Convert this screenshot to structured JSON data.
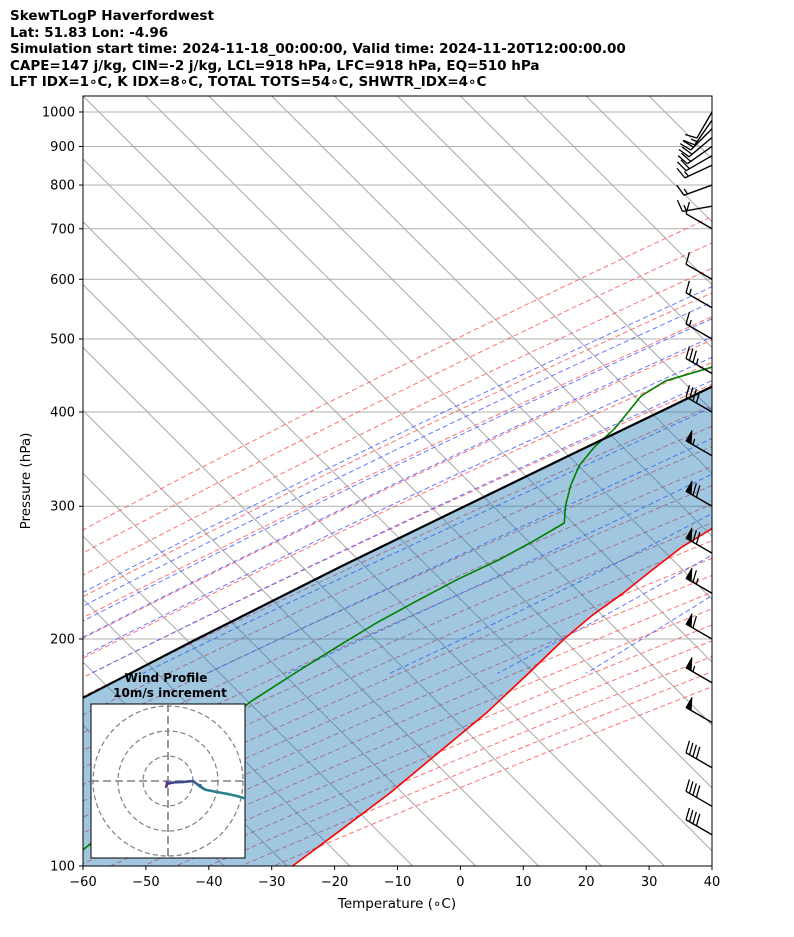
{
  "header": {
    "line1": "SkewTLogP Haverfordwest",
    "line2": "Lat: 51.83   Lon: -4.96",
    "line3": "Simulation start time: 2024-11-18_00:00:00, Valid time: 2024-11-20T12:00:00.00",
    "line4": "CAPE=147 j/kg, CIN=-2 j/kg, LCL=918 hPa, LFC=918 hPa, EQ=510 hPa",
    "line5": "LFT IDX=1∘C, K IDX=8∘C, TOTAL TOTS=54∘C, SHWTR_IDX=4∘C"
  },
  "chart_data": {
    "type": "line",
    "xlabel": "Temperature (∘C)",
    "ylabel": "Pressure (hPa)",
    "xlim": [
      -60,
      40
    ],
    "ylim": [
      1050,
      100
    ],
    "y_scale": "log",
    "x_ticks": [
      -60,
      -50,
      -40,
      -30,
      -20,
      -10,
      0,
      10,
      20,
      30,
      40
    ],
    "x_tick_labels": [
      "−60",
      "−50",
      "−40",
      "−30",
      "−20",
      "−10",
      "0",
      "10",
      "20",
      "30",
      "40"
    ],
    "y_ticks": [
      1000,
      900,
      800,
      700,
      600,
      500,
      400,
      300,
      200,
      100
    ],
    "y_tick_labels": [
      "1000",
      "900",
      "800",
      "700",
      "600",
      "500",
      "400",
      "300",
      "200",
      "100"
    ],
    "grid": true,
    "series": [
      {
        "color": "#ff0000",
        "points": [
          [
            1000,
            7.0
          ],
          [
            975,
            5.0
          ],
          [
            950,
            3.2
          ],
          [
            925,
            1.8
          ],
          [
            900,
            0.5
          ],
          [
            875,
            -0.5
          ],
          [
            850,
            -1.3
          ],
          [
            800,
            -3.5
          ],
          [
            750,
            -6.0
          ],
          [
            700,
            -8.5
          ],
          [
            650,
            -11.0
          ],
          [
            600,
            -13.5
          ],
          [
            550,
            -16.2
          ],
          [
            520,
            -17.3
          ],
          [
            500,
            -16.5
          ],
          [
            470,
            -14.8
          ],
          [
            440,
            -13.2
          ],
          [
            420,
            -13.1
          ],
          [
            400,
            -13.4
          ],
          [
            370,
            -13.7
          ],
          [
            340,
            -13.1
          ],
          [
            310,
            -12.1
          ],
          [
            300,
            -12.0
          ],
          [
            285,
            -13.1
          ],
          [
            265,
            -15.5
          ],
          [
            245,
            -16.7
          ],
          [
            230,
            -17.5
          ],
          [
            215,
            -18.9
          ],
          [
            200,
            -19.6
          ],
          [
            180,
            -19.8
          ],
          [
            160,
            -20.2
          ],
          [
            140,
            -21.6
          ],
          [
            125,
            -22.8
          ],
          [
            110,
            -25.0
          ],
          [
            100,
            -26.7
          ]
        ]
      },
      {
        "color": "#008000",
        "points": [
          [
            1000,
            1.6
          ],
          [
            975,
            1.2
          ],
          [
            950,
            0.5
          ],
          [
            925,
            0.6
          ],
          [
            900,
            0.2
          ],
          [
            875,
            -1.3
          ],
          [
            850,
            -6.5
          ],
          [
            825,
            -15.0
          ],
          [
            800,
            -24.0
          ],
          [
            790,
            -24.5
          ],
          [
            760,
            -25.0
          ],
          [
            720,
            -24.0
          ],
          [
            690,
            -23.0
          ],
          [
            650,
            -24.5
          ],
          [
            600,
            -28.0
          ],
          [
            550,
            -29.5
          ],
          [
            510,
            -30.5
          ],
          [
            490,
            -32.5
          ],
          [
            460,
            -39.0
          ],
          [
            440,
            -44.5
          ],
          [
            420,
            -46.0
          ],
          [
            400,
            -45.5
          ],
          [
            380,
            -45.0
          ],
          [
            360,
            -45.3
          ],
          [
            340,
            -44.8
          ],
          [
            320,
            -43.0
          ],
          [
            300,
            -40.5
          ],
          [
            285,
            -38.0
          ],
          [
            270,
            -40.0
          ],
          [
            255,
            -42.5
          ],
          [
            240,
            -46.0
          ],
          [
            225,
            -49.0
          ],
          [
            210,
            -52.0
          ],
          [
            195,
            -54.5
          ],
          [
            180,
            -57.0
          ],
          [
            165,
            -59.5
          ],
          [
            150,
            -60.6
          ],
          [
            135,
            -60.6
          ],
          [
            120,
            -61.3
          ],
          [
            100,
            -63.0
          ]
        ]
      },
      {
        "color": "#000000",
        "points": [
          [
            1000,
            6.8
          ],
          [
            975,
            4.8
          ],
          [
            950,
            2.8
          ],
          [
            925,
            1.4
          ],
          [
            918,
            1.0
          ],
          [
            900,
            0.0
          ],
          [
            850,
            -2.4
          ],
          [
            800,
            -5.0
          ],
          [
            750,
            -8.0
          ],
          [
            700,
            -11.1
          ],
          [
            650,
            -14.5
          ],
          [
            600,
            -18.5
          ],
          [
            550,
            -22.9
          ],
          [
            510,
            -27.0
          ],
          [
            500,
            -28.0
          ],
          [
            450,
            -34.0
          ],
          [
            400,
            -40.5
          ],
          [
            350,
            -48.0
          ],
          [
            300,
            -56.5
          ],
          [
            250,
            -66.5
          ],
          [
            200,
            -78.0
          ],
          [
            150,
            -92.0
          ],
          [
            100,
            -112.0
          ]
        ]
      }
    ],
    "wind_barbs": [
      {
        "pressure": 1000,
        "speed": 10,
        "direction": 210
      },
      {
        "pressure": 975,
        "speed": 15,
        "direction": 215
      },
      {
        "pressure": 950,
        "speed": 20,
        "direction": 225
      },
      {
        "pressure": 925,
        "speed": 20,
        "direction": 230
      },
      {
        "pressure": 900,
        "speed": 20,
        "direction": 235
      },
      {
        "pressure": 875,
        "speed": 20,
        "direction": 240
      },
      {
        "pressure": 850,
        "speed": 15,
        "direction": 245
      },
      {
        "pressure": 800,
        "speed": 15,
        "direction": 250
      },
      {
        "pressure": 750,
        "speed": 15,
        "direction": 260
      },
      {
        "pressure": 700,
        "speed": 10,
        "direction": 300
      },
      {
        "pressure": 600,
        "speed": 10,
        "direction": 300
      },
      {
        "pressure": 550,
        "speed": 15,
        "direction": 300
      },
      {
        "pressure": 500,
        "speed": 15,
        "direction": 300
      },
      {
        "pressure": 450,
        "speed": 35,
        "direction": 300
      },
      {
        "pressure": 400,
        "speed": 40,
        "direction": 300
      },
      {
        "pressure": 350,
        "speed": 55,
        "direction": 300
      },
      {
        "pressure": 300,
        "speed": 70,
        "direction": 300
      },
      {
        "pressure": 260,
        "speed": 70,
        "direction": 300
      },
      {
        "pressure": 230,
        "speed": 65,
        "direction": 300
      },
      {
        "pressure": 200,
        "speed": 60,
        "direction": 300
      },
      {
        "pressure": 175,
        "speed": 55,
        "direction": 300
      },
      {
        "pressure": 155,
        "speed": 50,
        "direction": 300
      },
      {
        "pressure": 135,
        "speed": 40,
        "direction": 300
      },
      {
        "pressure": 120,
        "speed": 40,
        "direction": 300
      },
      {
        "pressure": 110,
        "speed": 40,
        "direction": 300
      }
    ],
    "hodograph": {
      "title": "Wind Profile",
      "subtitle": "10m/s increment",
      "rings_ms": [
        10,
        20,
        30
      ],
      "u": [
        -0.7,
        -0.4,
        -0.4,
        0.3,
        2.0,
        6.0,
        10.0,
        12.0,
        13.0,
        12.5,
        15.0,
        20.0,
        24.0,
        27.5,
        31.0
      ],
      "v": [
        -2.3,
        -1.2,
        -0.5,
        -1.0,
        -0.6,
        -0.4,
        0.0,
        -1.5,
        -1.8,
        -2.0,
        -3.5,
        -4.5,
        -5.2,
        -6.0,
        -7.0
      ]
    }
  }
}
